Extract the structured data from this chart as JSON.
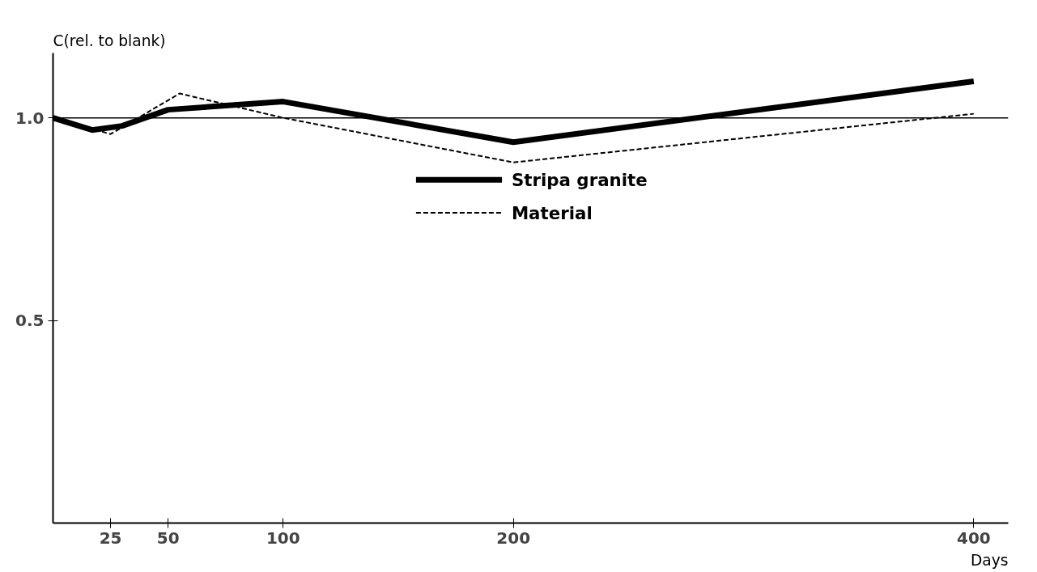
{
  "chart_data": {
    "type": "line",
    "xlabel": "Days",
    "ylabel": "C(rel. to blank)",
    "x": [
      0,
      17,
      30,
      50,
      100,
      200,
      400
    ],
    "series": [
      {
        "name": "Stripa granite",
        "color": "#000000",
        "line_style": "solid",
        "values": [
          1.0,
          0.97,
          0.98,
          1.02,
          1.04,
          0.94,
          1.09
        ]
      },
      {
        "name": "Material",
        "color": "#000000",
        "line_style": "dashed",
        "x": [
          0,
          25,
          55,
          100,
          200,
          400
        ],
        "values": [
          1.0,
          0.96,
          1.06,
          1.0,
          0.89,
          1.01
        ]
      }
    ],
    "xlim": [
      0,
      415
    ],
    "ylim": [
      0,
      1.16
    ],
    "xticks": [
      25,
      50,
      100,
      200,
      400
    ],
    "yticks": [
      0.5,
      {
        "value": 1.0,
        "label": "1.0"
      }
    ],
    "ref_lines": [
      {
        "axis": "y",
        "value": 1.0,
        "color": "#000000"
      }
    ],
    "grid": false,
    "legend": "center",
    "marker": "none"
  }
}
